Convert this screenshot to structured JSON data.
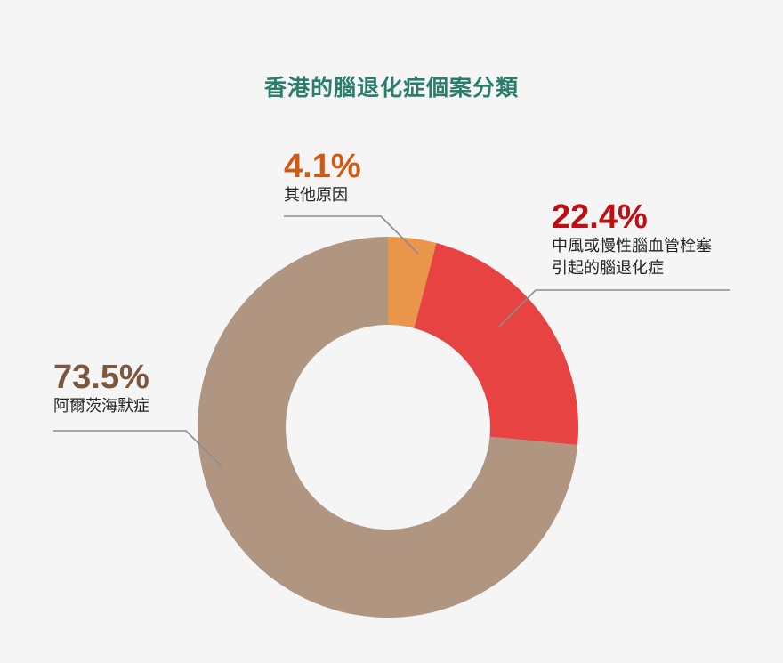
{
  "title": "香港的腦退化症個案分類",
  "colors": {
    "background": "#f5f5f5",
    "title": "#2a7d6b",
    "leader_line": "#8c8c8c",
    "hole": "#f5f5f5"
  },
  "chart_data": {
    "type": "pie",
    "variant": "donut",
    "title": "香港的腦退化症個案分類",
    "slices": [
      {
        "value": 4.1,
        "percent_label": "4.1%",
        "label_lines": [
          "其他原因"
        ],
        "color": "#e9964b",
        "label_color": "#cf5a14"
      },
      {
        "value": 22.4,
        "percent_label": "22.4%",
        "label_lines": [
          "中風或慢性腦血管栓塞",
          "引起的腦退化症"
        ],
        "color": "#e84343",
        "label_color": "#bf0e14"
      },
      {
        "value": 73.5,
        "percent_label": "73.5%",
        "label_lines": [
          "阿爾茨海默症"
        ],
        "color": "#b09581",
        "label_color": "#7b5740"
      }
    ]
  }
}
